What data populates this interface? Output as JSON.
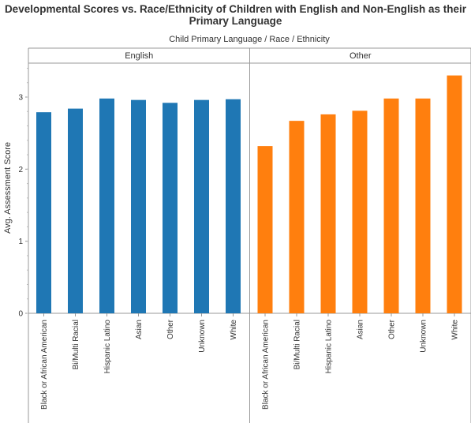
{
  "chart_data": {
    "type": "bar",
    "title": [
      "Developmental Scores vs. Race/Ethnicity of Children with English and Non-English as their",
      "Primary Language"
    ],
    "column_header": "Child Primary Language  /  Race / Ethnicity",
    "ylabel": "Avg. Assessment Score",
    "ylim": [
      0,
      3.45
    ],
    "yticks": [
      0,
      1,
      2,
      3
    ],
    "grid": false,
    "categories": [
      "Black or African American",
      "Bi/Multi Racial",
      "Hispanic Latino",
      "Asian",
      "Other",
      "Unknown",
      "White"
    ],
    "panels": [
      {
        "name": "English",
        "color": "#1f77b4",
        "values": [
          2.79,
          2.84,
          2.98,
          2.96,
          2.92,
          2.96,
          2.97
        ]
      },
      {
        "name": "Other",
        "color": "#ff7f0e",
        "values": [
          2.32,
          2.67,
          2.76,
          2.81,
          2.98,
          2.98,
          3.3
        ]
      }
    ]
  }
}
